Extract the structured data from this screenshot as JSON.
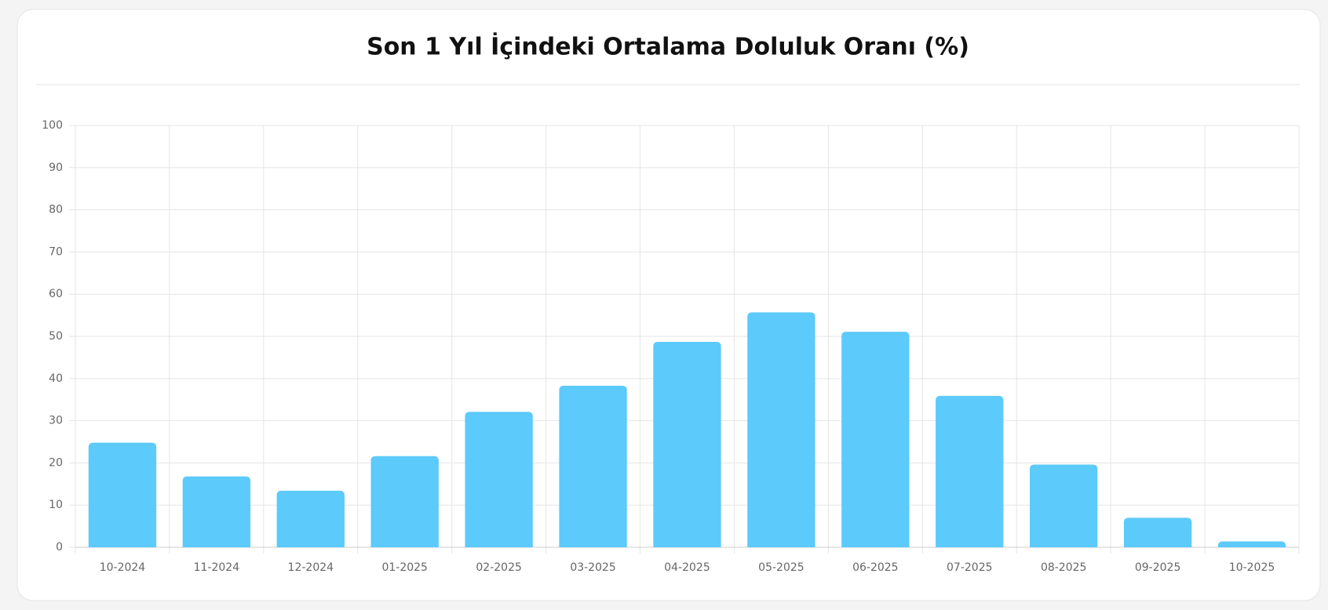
{
  "chart_data": {
    "type": "bar",
    "title": "Son 1 Yıl İçindeki Ortalama Doluluk Oranı (%)",
    "categories": [
      "10-2024",
      "11-2024",
      "12-2024",
      "01-2025",
      "02-2025",
      "03-2025",
      "04-2025",
      "05-2025",
      "06-2025",
      "07-2025",
      "08-2025",
      "09-2025",
      "10-2025"
    ],
    "values": [
      24.8,
      16.8,
      13.4,
      21.6,
      32.1,
      38.3,
      48.7,
      55.7,
      51.1,
      35.9,
      19.6,
      7.0,
      1.4
    ],
    "color": "#5ccafb",
    "ylim": [
      0,
      100
    ],
    "yticks": [
      0,
      10,
      20,
      30,
      40,
      50,
      60,
      70,
      80,
      90,
      100
    ],
    "grid": true
  }
}
